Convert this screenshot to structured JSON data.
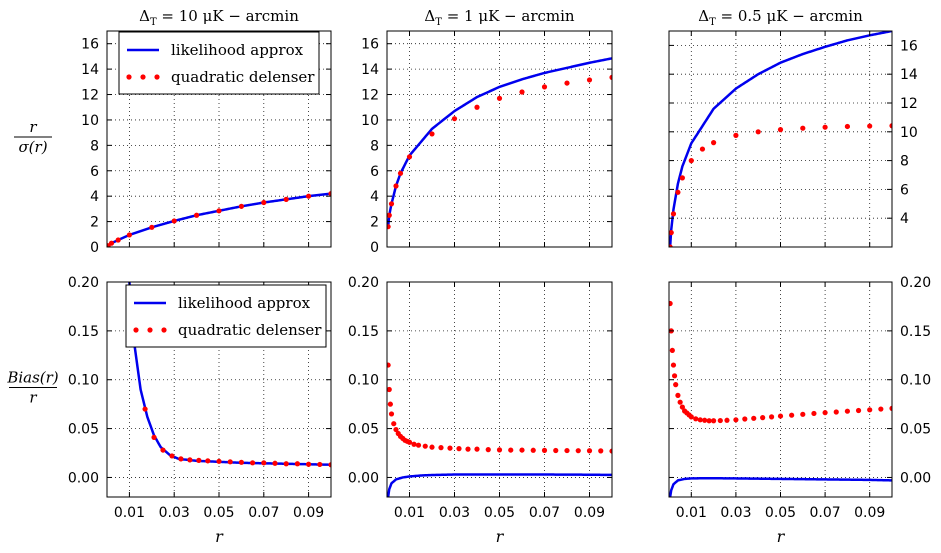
{
  "chart_data": [
    {
      "type": "line",
      "title": "ΔT = 10 μK − arcmin",
      "title_parts": {
        "delta": "Δ",
        "sub": "T",
        "eq": " = 10 μK − arcmin"
      },
      "xlabel": "r",
      "ylabel": "r / σ(r)",
      "ylabel_parts": {
        "num": "r",
        "den": "σ(r)"
      },
      "xlim": [
        0.0,
        0.1
      ],
      "ylim": [
        0,
        17
      ],
      "xticks": [
        0.01,
        0.03,
        0.05,
        0.07,
        0.09
      ],
      "xticklabels": [
        "0.01",
        "0.03",
        "0.05",
        "0.07",
        "0.09"
      ],
      "yticks": [
        0,
        2,
        4,
        6,
        8,
        10,
        12,
        14,
        16
      ],
      "yticklabels": [
        "0",
        "2",
        "4",
        "6",
        "8",
        "10",
        "12",
        "14",
        "16"
      ],
      "ytick_side": "left",
      "show_xticklabels": false,
      "grid": true,
      "legend": {
        "loc": "upper-left",
        "entries": [
          "likelihood approx",
          "quadratic delenser"
        ]
      },
      "series": [
        {
          "name": "likelihood approx",
          "style": "line",
          "color": "#0000ee",
          "x": [
            0.0005,
            0.002,
            0.005,
            0.01,
            0.02,
            0.03,
            0.04,
            0.05,
            0.06,
            0.07,
            0.08,
            0.09,
            0.1
          ],
          "y": [
            0.1,
            0.3,
            0.55,
            0.95,
            1.55,
            2.05,
            2.5,
            2.85,
            3.2,
            3.5,
            3.75,
            4.0,
            4.2
          ]
        },
        {
          "name": "quadratic delenser",
          "style": "dots",
          "color": "#ff0000",
          "x": [
            0.0005,
            0.002,
            0.005,
            0.01,
            0.02,
            0.03,
            0.04,
            0.05,
            0.06,
            0.07,
            0.08,
            0.09,
            0.1
          ],
          "y": [
            0.1,
            0.3,
            0.55,
            0.95,
            1.55,
            2.05,
            2.5,
            2.85,
            3.2,
            3.5,
            3.75,
            4.0,
            4.2
          ]
        }
      ]
    },
    {
      "type": "line",
      "title": "ΔT = 1 μK − arcmin",
      "title_parts": {
        "delta": "Δ",
        "sub": "T",
        "eq": " = 1 μK − arcmin"
      },
      "xlabel": "r",
      "ylabel": "",
      "xlim": [
        0.0,
        0.1
      ],
      "ylim": [
        0,
        17
      ],
      "xticks": [
        0.01,
        0.03,
        0.05,
        0.07,
        0.09
      ],
      "xticklabels": [
        "0.01",
        "0.03",
        "0.05",
        "0.07",
        "0.09"
      ],
      "yticks": [
        0,
        2,
        4,
        6,
        8,
        10,
        12,
        14,
        16
      ],
      "yticklabels": [
        "0",
        "2",
        "4",
        "6",
        "8",
        "10",
        "12",
        "14",
        "16"
      ],
      "ytick_side": "left",
      "show_xticklabels": false,
      "grid": true,
      "legend": null,
      "series": [
        {
          "name": "likelihood approx",
          "style": "line",
          "color": "#0000ee",
          "x": [
            0.0005,
            0.001,
            0.002,
            0.004,
            0.006,
            0.01,
            0.02,
            0.03,
            0.04,
            0.05,
            0.06,
            0.07,
            0.08,
            0.09,
            0.1
          ],
          "y": [
            1.6,
            2.5,
            3.4,
            4.8,
            5.8,
            7.2,
            9.3,
            10.7,
            11.8,
            12.6,
            13.2,
            13.7,
            14.1,
            14.5,
            14.85
          ]
        },
        {
          "name": "quadratic delenser",
          "style": "dots",
          "color": "#ff0000",
          "x": [
            0.0005,
            0.001,
            0.002,
            0.004,
            0.006,
            0.01,
            0.02,
            0.03,
            0.04,
            0.05,
            0.06,
            0.07,
            0.08,
            0.09,
            0.1
          ],
          "y": [
            1.6,
            2.5,
            3.4,
            4.8,
            5.8,
            7.1,
            8.9,
            10.1,
            11.0,
            11.7,
            12.2,
            12.6,
            12.9,
            13.15,
            13.35
          ]
        }
      ]
    },
    {
      "type": "line",
      "title": "ΔT = 0.5 μK − arcmin",
      "title_parts": {
        "delta": "Δ",
        "sub": "T",
        "eq": " = 0.5 μK − arcmin"
      },
      "xlabel": "r",
      "ylabel": "",
      "xlim": [
        0.0,
        0.1
      ],
      "ylim": [
        2,
        17
      ],
      "xticks": [
        0.01,
        0.03,
        0.05,
        0.07,
        0.09
      ],
      "xticklabels": [
        "0.01",
        "0.03",
        "0.05",
        "0.07",
        "0.09"
      ],
      "yticks": [
        4,
        6,
        8,
        10,
        12,
        14,
        16
      ],
      "yticklabels": [
        "4",
        "6",
        "8",
        "10",
        "12",
        "14",
        "16"
      ],
      "ytick_side": "right",
      "show_xticklabels": false,
      "grid": true,
      "legend": null,
      "series": [
        {
          "name": "likelihood approx",
          "style": "line",
          "color": "#0000ee",
          "x": [
            0.0005,
            0.001,
            0.002,
            0.004,
            0.006,
            0.01,
            0.02,
            0.03,
            0.04,
            0.05,
            0.06,
            0.07,
            0.08,
            0.09,
            0.1
          ],
          "y": [
            2.0,
            3.2,
            4.6,
            6.4,
            7.6,
            9.2,
            11.6,
            13.0,
            14.0,
            14.8,
            15.4,
            15.9,
            16.35,
            16.7,
            17.0
          ]
        },
        {
          "name": "quadratic delenser",
          "style": "dots",
          "color": "#ff0000",
          "x": [
            0.0005,
            0.001,
            0.002,
            0.004,
            0.006,
            0.01,
            0.015,
            0.02,
            0.03,
            0.04,
            0.05,
            0.06,
            0.07,
            0.08,
            0.09,
            0.1
          ],
          "y": [
            2.0,
            3.0,
            4.3,
            5.8,
            6.8,
            8.0,
            8.8,
            9.25,
            9.75,
            10.0,
            10.15,
            10.25,
            10.32,
            10.37,
            10.4,
            10.42
          ]
        }
      ]
    },
    {
      "type": "line",
      "title": "",
      "xlabel": "r",
      "ylabel": "Bias(r) / r",
      "ylabel_parts": {
        "num": "Bias(r)",
        "den": "r"
      },
      "xlim": [
        0.0,
        0.1
      ],
      "ylim": [
        -0.02,
        0.2
      ],
      "xticks": [
        0.01,
        0.03,
        0.05,
        0.07,
        0.09
      ],
      "xticklabels": [
        "0.01",
        "0.03",
        "0.05",
        "0.07",
        "0.09"
      ],
      "yticks": [
        0.0,
        0.05,
        0.1,
        0.15,
        0.2
      ],
      "yticklabels": [
        "0.00",
        "0.05",
        "0.10",
        "0.15",
        "0.20"
      ],
      "ytick_side": "left",
      "show_xticklabels": true,
      "grid": true,
      "legend": {
        "loc": "upper-right",
        "entries": [
          "likelihood approx",
          "quadratic delenser"
        ]
      },
      "series": [
        {
          "name": "likelihood approx",
          "style": "line",
          "color": "#0000ee",
          "x": [
            0.01,
            0.012,
            0.015,
            0.018,
            0.021,
            0.024,
            0.028,
            0.032,
            0.04,
            0.05,
            0.06,
            0.07,
            0.08,
            0.09,
            0.1
          ],
          "y": [
            0.2,
            0.14,
            0.09,
            0.062,
            0.043,
            0.031,
            0.023,
            0.019,
            0.017,
            0.016,
            0.015,
            0.0145,
            0.014,
            0.0135,
            0.013
          ]
        },
        {
          "name": "quadratic delenser",
          "style": "dots",
          "color": "#ff0000",
          "x": [
            0.012,
            0.017,
            0.021,
            0.025,
            0.029,
            0.033,
            0.037,
            0.041,
            0.045,
            0.05,
            0.055,
            0.06,
            0.065,
            0.07,
            0.075,
            0.08,
            0.085,
            0.09,
            0.095,
            0.1
          ],
          "y": [
            0.14,
            0.07,
            0.041,
            0.028,
            0.022,
            0.019,
            0.018,
            0.0175,
            0.017,
            0.0165,
            0.016,
            0.0155,
            0.015,
            0.015,
            0.0145,
            0.014,
            0.014,
            0.0135,
            0.0133,
            0.013
          ]
        }
      ]
    },
    {
      "type": "line",
      "title": "",
      "xlabel": "r",
      "ylabel": "",
      "xlim": [
        0.0,
        0.1
      ],
      "ylim": [
        -0.02,
        0.2
      ],
      "xticks": [
        0.01,
        0.03,
        0.05,
        0.07,
        0.09
      ],
      "xticklabels": [
        "0.01",
        "0.03",
        "0.05",
        "0.07",
        "0.09"
      ],
      "yticks": [
        0.0,
        0.05,
        0.1,
        0.15,
        0.2
      ],
      "yticklabels": [
        "0.00",
        "0.05",
        "0.10",
        "0.15",
        "0.20"
      ],
      "ytick_side": "left",
      "show_xticklabels": true,
      "grid": true,
      "legend": null,
      "series": [
        {
          "name": "likelihood approx",
          "style": "line",
          "color": "#0000ee",
          "x": [
            0.0005,
            0.001,
            0.002,
            0.004,
            0.007,
            0.01,
            0.015,
            0.02,
            0.03,
            0.05,
            0.07,
            0.09,
            0.1
          ],
          "y": [
            -0.02,
            -0.012,
            -0.006,
            -0.002,
            0.0,
            0.001,
            0.002,
            0.0025,
            0.003,
            0.003,
            0.003,
            0.0028,
            0.0026
          ]
        },
        {
          "name": "quadratic delenser",
          "style": "dots",
          "color": "#ff0000",
          "x": [
            0.0005,
            0.001,
            0.0015,
            0.002,
            0.003,
            0.004,
            0.005,
            0.006,
            0.007,
            0.008,
            0.009,
            0.01,
            0.012,
            0.014,
            0.017,
            0.02,
            0.024,
            0.028,
            0.032,
            0.036,
            0.04,
            0.045,
            0.05,
            0.055,
            0.06,
            0.065,
            0.07,
            0.075,
            0.08,
            0.085,
            0.09,
            0.095,
            0.1
          ],
          "y": [
            0.115,
            0.09,
            0.075,
            0.065,
            0.055,
            0.049,
            0.045,
            0.042,
            0.04,
            0.038,
            0.037,
            0.036,
            0.034,
            0.033,
            0.032,
            0.031,
            0.0305,
            0.03,
            0.0295,
            0.029,
            0.029,
            0.0285,
            0.0282,
            0.028,
            0.028,
            0.0278,
            0.0277,
            0.0276,
            0.0275,
            0.0274,
            0.0273,
            0.0272,
            0.027
          ]
        }
      ]
    },
    {
      "type": "line",
      "title": "",
      "xlabel": "r",
      "ylabel": "",
      "xlim": [
        0.0,
        0.1
      ],
      "ylim": [
        -0.02,
        0.2
      ],
      "xticks": [
        0.01,
        0.03,
        0.05,
        0.07,
        0.09
      ],
      "xticklabels": [
        "0.01",
        "0.03",
        "0.05",
        "0.07",
        "0.09"
      ],
      "yticks": [
        0.0,
        0.05,
        0.1,
        0.15,
        0.2
      ],
      "yticklabels": [
        "0.00",
        "0.05",
        "0.10",
        "0.15",
        "0.20"
      ],
      "ytick_side": "right",
      "show_xticklabels": true,
      "grid": true,
      "legend": null,
      "series": [
        {
          "name": "likelihood approx",
          "style": "line",
          "color": "#0000ee",
          "x": [
            0.0005,
            0.001,
            0.002,
            0.004,
            0.007,
            0.01,
            0.015,
            0.02,
            0.03,
            0.05,
            0.07,
            0.09,
            0.1
          ],
          "y": [
            -0.02,
            -0.013,
            -0.007,
            -0.003,
            -0.0015,
            -0.001,
            -0.0008,
            -0.0008,
            -0.001,
            -0.0015,
            -0.002,
            -0.0025,
            -0.003
          ]
        },
        {
          "name": "quadratic delenser",
          "style": "dots",
          "color": "#ff0000",
          "x": [
            0.0005,
            0.001,
            0.0015,
            0.002,
            0.0025,
            0.003,
            0.004,
            0.005,
            0.006,
            0.007,
            0.008,
            0.009,
            0.01,
            0.012,
            0.014,
            0.016,
            0.018,
            0.02,
            0.023,
            0.026,
            0.03,
            0.034,
            0.038,
            0.042,
            0.046,
            0.05,
            0.055,
            0.06,
            0.065,
            0.07,
            0.075,
            0.08,
            0.085,
            0.09,
            0.095,
            0.1
          ],
          "y": [
            0.178,
            0.15,
            0.13,
            0.115,
            0.104,
            0.095,
            0.084,
            0.077,
            0.072,
            0.068,
            0.066,
            0.064,
            0.062,
            0.06,
            0.059,
            0.0585,
            0.058,
            0.058,
            0.0582,
            0.0585,
            0.059,
            0.0598,
            0.0605,
            0.0612,
            0.062,
            0.0628,
            0.0637,
            0.0646,
            0.0655,
            0.0663,
            0.067,
            0.0678,
            0.0685,
            0.0692,
            0.07,
            0.0707
          ]
        }
      ]
    }
  ]
}
